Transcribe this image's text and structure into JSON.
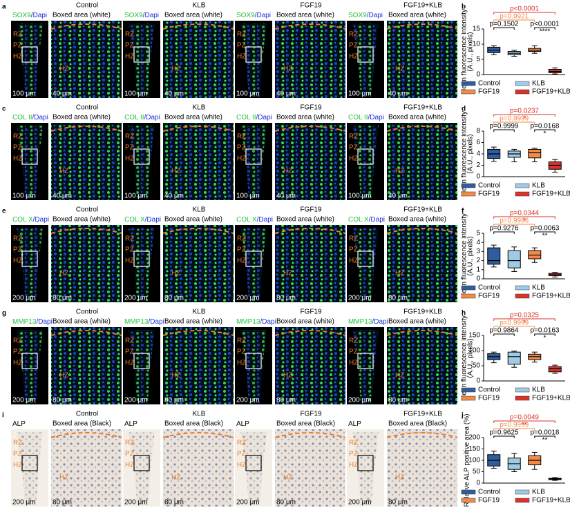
{
  "image_rows": [
    {
      "letter": "a",
      "groups": [
        "Control",
        "KLB",
        "FGF19",
        "FGF19+KLB"
      ],
      "stain": "SOX9",
      "dapi": "/Dapi",
      "boxed": "Boxed area (white)",
      "zones": [
        "RZ",
        "PZ",
        "HZ"
      ],
      "scale_overview": "100 μm",
      "scale_zoom": "40 μm"
    },
    {
      "letter": "c",
      "groups": [
        "Control",
        "KLB",
        "FGF19",
        "FGF19+KLB"
      ],
      "stain": "COL II",
      "dapi": "/Dapi",
      "boxed": "Boxed area (white)",
      "zones": [
        "RZ",
        "PZ",
        "HZ"
      ],
      "scale_overview": "100 μm",
      "scale_zoom": "40 μm"
    },
    {
      "letter": "e",
      "groups": [
        "Control",
        "KLB",
        "FGF19",
        "FGF19+KLB"
      ],
      "stain": "COL X",
      "dapi": "/Dapi",
      "boxed": "Boxed area (white)",
      "zones": [
        "RZ",
        "PZ",
        "HZ"
      ],
      "scale_overview": "200 μm",
      "scale_zoom": "80 μm"
    },
    {
      "letter": "g",
      "groups": [
        "Control",
        "KLB",
        "FGF19",
        "FGF19+KLB"
      ],
      "stain": "MMP13",
      "dapi": "/Dapi",
      "boxed": "Boxed area (white)",
      "zones": [
        "RZ",
        "PZ",
        "HZ"
      ],
      "scale_overview": "200 μm",
      "scale_zoom": "80 μm"
    },
    {
      "letter": "i",
      "groups": [
        "Control",
        "KLB",
        "FGF19",
        "FGF19+KLB"
      ],
      "stain": "ALP",
      "dapi": "",
      "boxed": "Boxed area (Black)",
      "zones": [
        "RZ",
        "PZ",
        "HZ"
      ],
      "scale_overview": "200 μm",
      "scale_zoom": "80 μm"
    }
  ],
  "chart_data": [
    {
      "type": "box",
      "letter": "b",
      "y_label": [
        "Mean fluorescence intensity",
        "(A.U., pixels)"
      ],
      "ylim": [
        0,
        15
      ],
      "yticks": [
        0,
        5,
        10,
        15
      ],
      "series": [
        {
          "name": "Control",
          "color": "#2f5d9e",
          "values": [
            6.5,
            7.2,
            8,
            9,
            9.5
          ]
        },
        {
          "name": "KLB",
          "color": "#9fcbe6",
          "values": [
            6,
            6.5,
            7,
            7.6,
            8
          ]
        },
        {
          "name": "FGF19",
          "color": "#f28a4a",
          "values": [
            7,
            7.6,
            8,
            8.6,
            9.5
          ]
        },
        {
          "name": "FGF19+KLB",
          "color": "#d9342b",
          "values": [
            0.2,
            0.6,
            1,
            1.7,
            2.2
          ]
        }
      ],
      "comparisons": [
        {
          "label": "p=0.1502",
          "color": "#000000",
          "stars": ""
        },
        {
          "label": "p=0.9921",
          "color": "#f28a4a",
          "stars": ""
        },
        {
          "label": "p<0.0001",
          "color": "#d9342b",
          "stars": ""
        },
        {
          "label": "p<0.0001",
          "color": "#000000",
          "stars": "****"
        }
      ]
    },
    {
      "type": "box",
      "letter": "d",
      "y_label": [
        "Mean fluorescence intensity",
        "(A.U., pixels)"
      ],
      "ylim": [
        0,
        8
      ],
      "yticks": [
        0,
        2,
        4,
        6,
        8
      ],
      "series": [
        {
          "name": "Control",
          "color": "#2f5d9e",
          "values": [
            2.7,
            3.2,
            4,
            4.8,
            5.2
          ]
        },
        {
          "name": "KLB",
          "color": "#9fcbe6",
          "values": [
            2.6,
            3.4,
            4,
            4.5,
            4.8
          ]
        },
        {
          "name": "FGF19",
          "color": "#f28a4a",
          "values": [
            2.6,
            3.3,
            4.2,
            4.8,
            5
          ]
        },
        {
          "name": "FGF19+KLB",
          "color": "#d9342b",
          "values": [
            0.8,
            1.3,
            2,
            2.6,
            3
          ]
        }
      ],
      "comparisons": [
        {
          "label": "p=0.9999",
          "color": "#000000",
          "stars": ""
        },
        {
          "label": "p=0.9999",
          "color": "#f28a4a",
          "stars": ""
        },
        {
          "label": "p=0.0237",
          "color": "#d9342b",
          "stars": "*"
        },
        {
          "label": "p=0.0168",
          "color": "#000000",
          "stars": "*"
        }
      ]
    },
    {
      "type": "box",
      "letter": "f",
      "y_label": [
        "Mean fluorescence intensity",
        "(A.U., pixels)"
      ],
      "ylim": [
        0,
        5
      ],
      "yticks": [
        0,
        1,
        2,
        3,
        4,
        5
      ],
      "series": [
        {
          "name": "Control",
          "color": "#2f5d9e",
          "values": [
            1.3,
            1.6,
            2,
            3.4,
            3.7
          ]
        },
        {
          "name": "KLB",
          "color": "#9fcbe6",
          "values": [
            0.8,
            1.2,
            2,
            3.1,
            3.5
          ]
        },
        {
          "name": "FGF19",
          "color": "#f28a4a",
          "values": [
            1.8,
            2.2,
            2.6,
            3.1,
            3.4
          ]
        },
        {
          "name": "FGF19+KLB",
          "color": "#d9342b",
          "values": [
            0.2,
            0.35,
            0.45,
            0.6,
            0.7
          ]
        }
      ],
      "comparisons": [
        {
          "label": "p=0.9276",
          "color": "#000000",
          "stars": ""
        },
        {
          "label": "p=0.9996",
          "color": "#f28a4a",
          "stars": ""
        },
        {
          "label": "p=0.0344",
          "color": "#d9342b",
          "stars": "*"
        },
        {
          "label": "p=0.0063",
          "color": "#000000",
          "stars": "**"
        }
      ]
    },
    {
      "type": "box",
      "letter": "h",
      "y_label": [
        "Mean fluorescence intensity",
        "(A.U., pixels)"
      ],
      "ylim": [
        0,
        150
      ],
      "yticks": [
        0,
        50,
        100,
        150
      ],
      "series": [
        {
          "name": "Control",
          "color": "#2f5d9e",
          "values": [
            60,
            70,
            80,
            90,
            95
          ]
        },
        {
          "name": "KLB",
          "color": "#9fcbe6",
          "values": [
            45,
            55,
            80,
            95,
            98
          ]
        },
        {
          "name": "FGF19",
          "color": "#f28a4a",
          "values": [
            62,
            70,
            80,
            88,
            95
          ]
        },
        {
          "name": "FGF19+KLB",
          "color": "#d9342b",
          "values": [
            25,
            30,
            40,
            47,
            52
          ]
        }
      ],
      "comparisons": [
        {
          "label": "p=0.9864",
          "color": "#000000",
          "stars": ""
        },
        {
          "label": "p=0.9999",
          "color": "#f28a4a",
          "stars": ""
        },
        {
          "label": "p=0.0325",
          "color": "#d9342b",
          "stars": "*"
        },
        {
          "label": "p=0.0163",
          "color": "#000000",
          "stars": "*"
        }
      ]
    },
    {
      "type": "box",
      "letter": "j",
      "y_label": [
        "Relative ALP positive area (%)"
      ],
      "ylim": [
        0,
        200
      ],
      "yticks": [
        0,
        50,
        100,
        150,
        200
      ],
      "series": [
        {
          "name": "Control",
          "color": "#2f5d9e",
          "values": [
            65,
            75,
            100,
            125,
            140
          ]
        },
        {
          "name": "KLB",
          "color": "#9fcbe6",
          "values": [
            50,
            60,
            85,
            110,
            130
          ]
        },
        {
          "name": "FGF19",
          "color": "#f28a4a",
          "values": [
            60,
            80,
            100,
            120,
            135
          ]
        },
        {
          "name": "FGF19+KLB",
          "color": "#d9342b",
          "values": [
            12,
            15,
            18,
            21,
            24
          ]
        }
      ],
      "comparisons": [
        {
          "label": "p=0.9625",
          "color": "#000000",
          "stars": ""
        },
        {
          "label": "p=0.9999",
          "color": "#f28a4a",
          "stars": ""
        },
        {
          "label": "p=0.0049",
          "color": "#d9342b",
          "stars": "**"
        },
        {
          "label": "p=0.0018",
          "color": "#000000",
          "stars": "**"
        }
      ]
    }
  ]
}
